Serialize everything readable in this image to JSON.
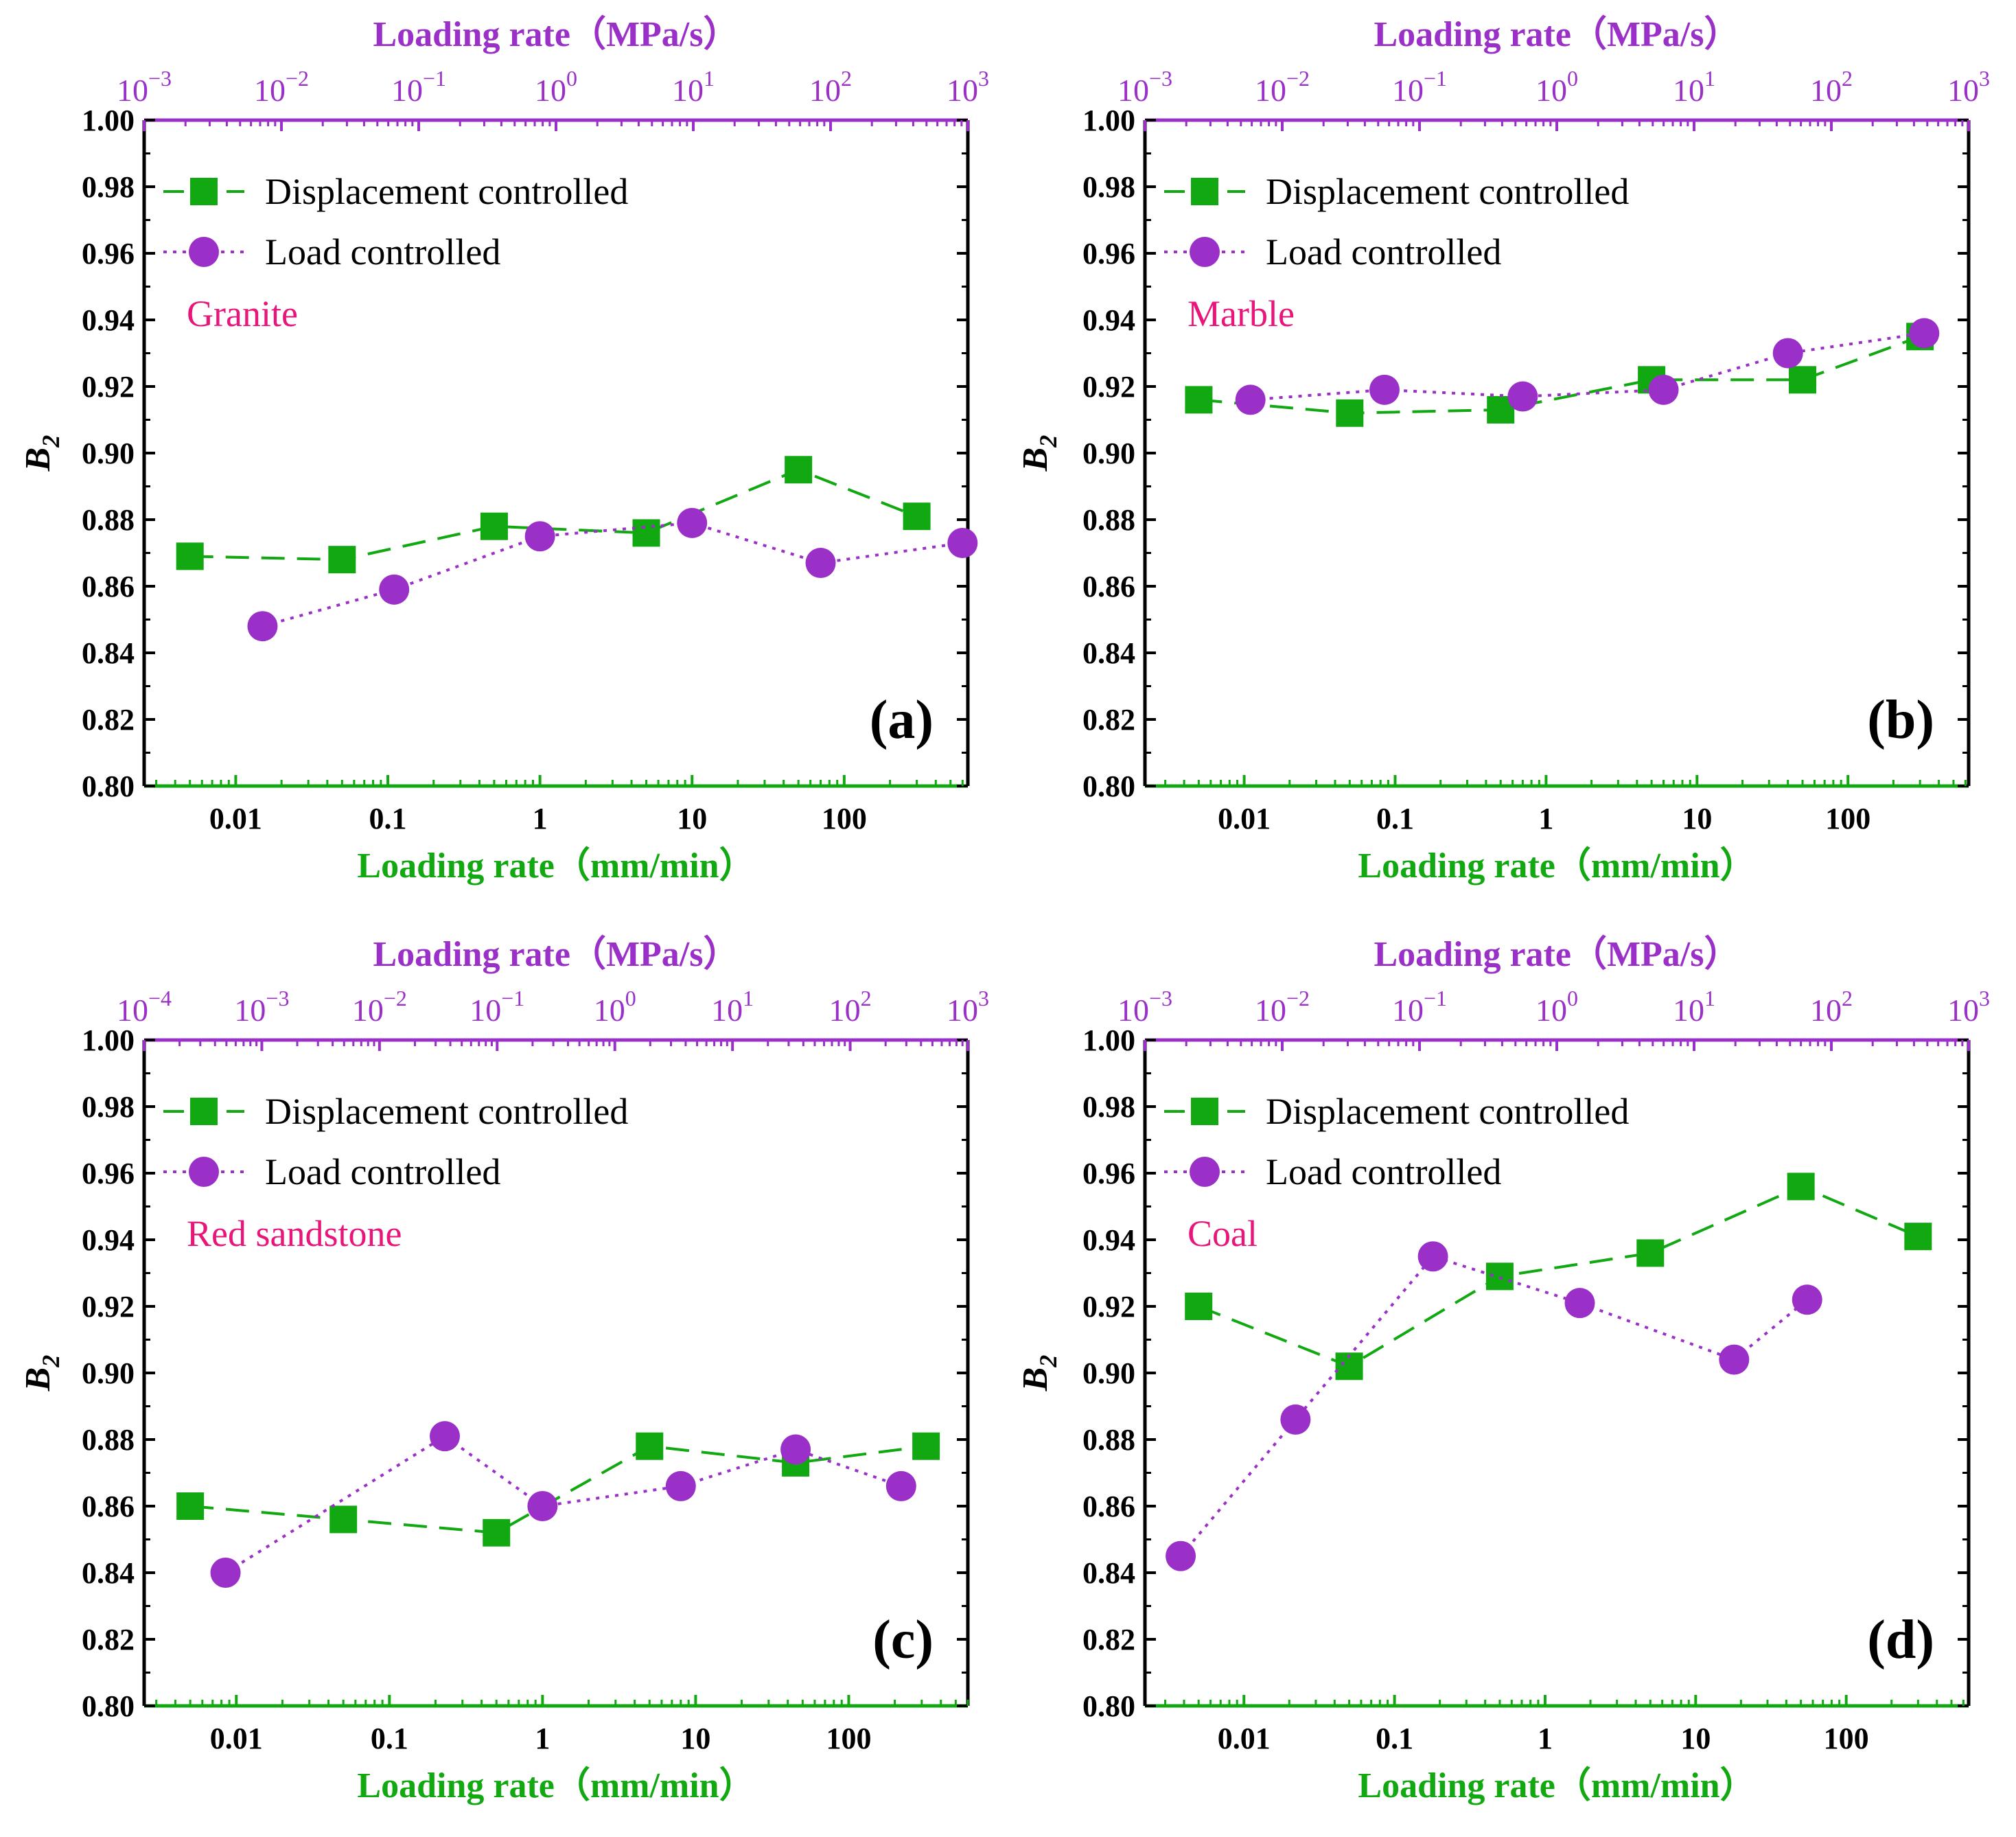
{
  "colors": {
    "displacement": "#12a812",
    "load": "#9a30c8",
    "top_axis": "#9a30c8",
    "bottom_axis": "#12a812",
    "annotation": "#e8157a",
    "frame": "#000000"
  },
  "chart_data": [
    {
      "type": "line",
      "panel_label": "(a)",
      "annotation": "Granite",
      "xlabel": "Loading rate（mm/min）",
      "xlabel_top": "Loading rate（MPa/s）",
      "ylabel": "B",
      "ylabel_sub": "2",
      "xscale": "log",
      "xlim": [
        0.0025,
        650
      ],
      "xticks": [
        0.01,
        0.1,
        1,
        10,
        100
      ],
      "xtick_labels": [
        "0.01",
        "0.1",
        "1",
        "10",
        "100"
      ],
      "top_xlim": [
        0.001,
        1000
      ],
      "top_ticks": [
        {
          "base": "10",
          "exp": "−3"
        },
        {
          "base": "10",
          "exp": "−2"
        },
        {
          "base": "10",
          "exp": "−1"
        },
        {
          "base": "10",
          "exp": "0"
        },
        {
          "base": "10",
          "exp": "1"
        },
        {
          "base": "10",
          "exp": "2"
        },
        {
          "base": "10",
          "exp": "3"
        }
      ],
      "ylim": [
        0.8,
        1.0
      ],
      "yticks": [
        "0.80",
        "0.82",
        "0.84",
        "0.86",
        "0.88",
        "0.90",
        "0.92",
        "0.94",
        "0.96",
        "0.98",
        "1.00"
      ],
      "legend_placement": "top-left",
      "series": [
        {
          "name": "Displacement controlled",
          "marker": "square",
          "line": "dashed",
          "x": [
            0.005,
            0.05,
            0.5,
            5,
            50,
            300
          ],
          "y": [
            0.869,
            0.868,
            0.878,
            0.876,
            0.895,
            0.881
          ]
        },
        {
          "name": "Load controlled",
          "marker": "circle",
          "line": "dotted",
          "x": [
            0.015,
            0.11,
            1,
            10,
            70,
            600
          ],
          "y": [
            0.848,
            0.859,
            0.875,
            0.879,
            0.867,
            0.873
          ]
        }
      ]
    },
    {
      "type": "line",
      "panel_label": "(b)",
      "annotation": "Marble",
      "xlabel": "Loading rate（mm/min）",
      "xlabel_top": "Loading rate（MPa/s）",
      "ylabel": "B",
      "ylabel_sub": "2",
      "xscale": "log",
      "xlim": [
        0.0022,
        630
      ],
      "xticks": [
        0.01,
        0.1,
        1,
        10,
        100
      ],
      "xtick_labels": [
        "0.01",
        "0.1",
        "1",
        "10",
        "100"
      ],
      "top_xlim": [
        0.001,
        1000
      ],
      "top_ticks": [
        {
          "base": "10",
          "exp": "−3"
        },
        {
          "base": "10",
          "exp": "−2"
        },
        {
          "base": "10",
          "exp": "−1"
        },
        {
          "base": "10",
          "exp": "0"
        },
        {
          "base": "10",
          "exp": "1"
        },
        {
          "base": "10",
          "exp": "2"
        },
        {
          "base": "10",
          "exp": "3"
        }
      ],
      "ylim": [
        0.8,
        1.0
      ],
      "yticks": [
        "0.80",
        "0.82",
        "0.84",
        "0.86",
        "0.88",
        "0.90",
        "0.92",
        "0.94",
        "0.96",
        "0.98",
        "1.00"
      ],
      "legend_placement": "top-left",
      "series": [
        {
          "name": "Displacement controlled",
          "marker": "square",
          "line": "dashed",
          "x": [
            0.005,
            0.05,
            0.5,
            5,
            50,
            300
          ],
          "y": [
            0.916,
            0.912,
            0.913,
            0.922,
            0.922,
            0.935
          ]
        },
        {
          "name": "Load controlled",
          "marker": "circle",
          "line": "dotted",
          "x": [
            0.011,
            0.085,
            0.7,
            6,
            40,
            320
          ],
          "y": [
            0.916,
            0.919,
            0.917,
            0.919,
            0.93,
            0.936
          ]
        }
      ]
    },
    {
      "type": "line",
      "panel_label": "(c)",
      "annotation": "Red sandstone",
      "xlabel": "Loading rate（mm/min）",
      "xlabel_top": "Loading rate（MPa/s）",
      "ylabel": "B",
      "ylabel_sub": "2",
      "xscale": "log",
      "xlim": [
        0.0025,
        600
      ],
      "xticks": [
        0.01,
        0.1,
        1,
        10,
        100
      ],
      "xtick_labels": [
        "0.01",
        "0.1",
        "1",
        "10",
        "100"
      ],
      "top_xlim": [
        0.0001,
        1000
      ],
      "top_ticks": [
        {
          "base": "10",
          "exp": "−4"
        },
        {
          "base": "10",
          "exp": "−3"
        },
        {
          "base": "10",
          "exp": "−2"
        },
        {
          "base": "10",
          "exp": "−1"
        },
        {
          "base": "10",
          "exp": "0"
        },
        {
          "base": "10",
          "exp": "1"
        },
        {
          "base": "10",
          "exp": "2"
        },
        {
          "base": "10",
          "exp": "3"
        }
      ],
      "ylim": [
        0.8,
        1.0
      ],
      "yticks": [
        "0.80",
        "0.82",
        "0.84",
        "0.86",
        "0.88",
        "0.90",
        "0.92",
        "0.94",
        "0.96",
        "0.98",
        "1.00"
      ],
      "legend_placement": "top-left",
      "series": [
        {
          "name": "Displacement controlled",
          "marker": "square",
          "line": "dashed",
          "x": [
            0.005,
            0.05,
            0.5,
            5,
            45,
            320
          ],
          "y": [
            0.86,
            0.856,
            0.852,
            0.878,
            0.873,
            0.878
          ]
        },
        {
          "name": "Load controlled",
          "marker": "circle",
          "line": "dotted",
          "x": [
            0.0085,
            0.23,
            1,
            8,
            45,
            220
          ],
          "y": [
            0.84,
            0.881,
            0.86,
            0.866,
            0.877,
            0.866
          ]
        }
      ]
    },
    {
      "type": "line",
      "panel_label": "(d)",
      "annotation": "Coal",
      "xlabel": "Loading rate（mm/min）",
      "xlabel_top": "Loading rate（MPa/s）",
      "ylabel": "B",
      "ylabel_sub": "2",
      "xscale": "log",
      "xlim": [
        0.0022,
        650
      ],
      "xticks": [
        0.01,
        0.1,
        1,
        10,
        100
      ],
      "xtick_labels": [
        "0.01",
        "0.1",
        "1",
        "10",
        "100"
      ],
      "top_xlim": [
        0.001,
        1000
      ],
      "top_ticks": [
        {
          "base": "10",
          "exp": "−3"
        },
        {
          "base": "10",
          "exp": "−2"
        },
        {
          "base": "10",
          "exp": "−1"
        },
        {
          "base": "10",
          "exp": "0"
        },
        {
          "base": "10",
          "exp": "1"
        },
        {
          "base": "10",
          "exp": "2"
        },
        {
          "base": "10",
          "exp": "3"
        }
      ],
      "ylim": [
        0.8,
        1.0
      ],
      "yticks": [
        "0.80",
        "0.82",
        "0.84",
        "0.86",
        "0.88",
        "0.90",
        "0.92",
        "0.94",
        "0.96",
        "0.98",
        "1.00"
      ],
      "legend_placement": "top-left",
      "series": [
        {
          "name": "Displacement controlled",
          "marker": "square",
          "line": "dashed",
          "x": [
            0.005,
            0.05,
            0.5,
            5,
            50,
            300
          ],
          "y": [
            0.92,
            0.902,
            0.929,
            0.936,
            0.956,
            0.941
          ]
        },
        {
          "name": "Load controlled",
          "marker": "circle",
          "line": "dotted",
          "x": [
            0.0038,
            0.022,
            0.18,
            1.7,
            18,
            55
          ],
          "y": [
            0.845,
            0.886,
            0.935,
            0.921,
            0.904,
            0.922
          ]
        }
      ]
    }
  ]
}
